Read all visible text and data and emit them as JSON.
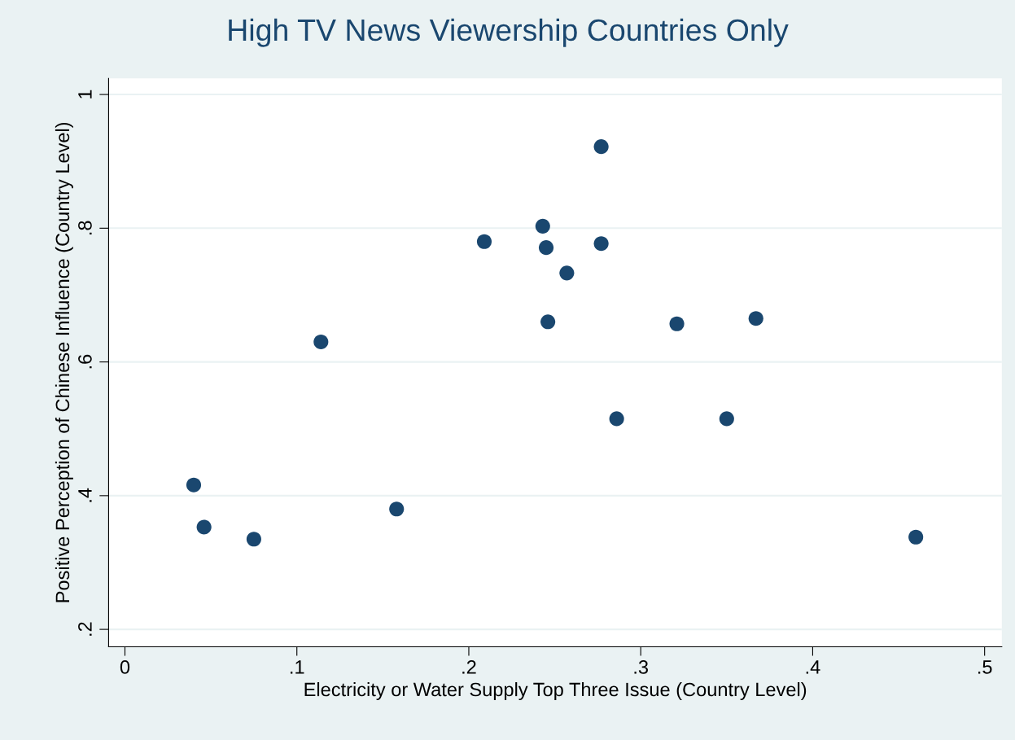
{
  "chart_data": {
    "type": "scatter",
    "title": "High TV News Viewership Countries Only",
    "xlabel": "Electricity or Water Supply Top Three Issue (Country Level)",
    "ylabel": "Positive Perception of Chinese Influence (Country Level)",
    "series": [
      {
        "color": "#1a476f",
        "x": [
          0.04,
          0.046,
          0.075,
          0.114,
          0.158,
          0.209,
          0.243,
          0.245,
          0.246,
          0.257,
          0.277,
          0.277,
          0.286,
          0.321,
          0.35,
          0.367,
          0.46
        ],
        "values": [
          0.416,
          0.353,
          0.335,
          0.63,
          0.38,
          0.78,
          0.803,
          0.771,
          0.66,
          0.733,
          0.922,
          0.777,
          0.515,
          0.657,
          0.515,
          0.665,
          0.338
        ]
      }
    ],
    "xlim": [
      -0.0095,
      0.51
    ],
    "ylim": [
      0.174,
      1.024
    ],
    "xticks": [
      {
        "value": 0,
        "label": "0"
      },
      {
        "value": 0.1,
        "label": ".1"
      },
      {
        "value": 0.2,
        "label": ".2"
      },
      {
        "value": 0.3,
        "label": ".3"
      },
      {
        "value": 0.4,
        "label": ".4"
      },
      {
        "value": 0.5,
        "label": ".5"
      }
    ],
    "yticks": [
      {
        "value": 0.2,
        "label": ".2"
      },
      {
        "value": 0.4,
        "label": ".4"
      },
      {
        "value": 0.6,
        "label": ".6"
      },
      {
        "value": 0.8,
        "label": ".8"
      },
      {
        "value": 1,
        "label": "1"
      }
    ],
    "grid": "y",
    "marker": "circle"
  }
}
